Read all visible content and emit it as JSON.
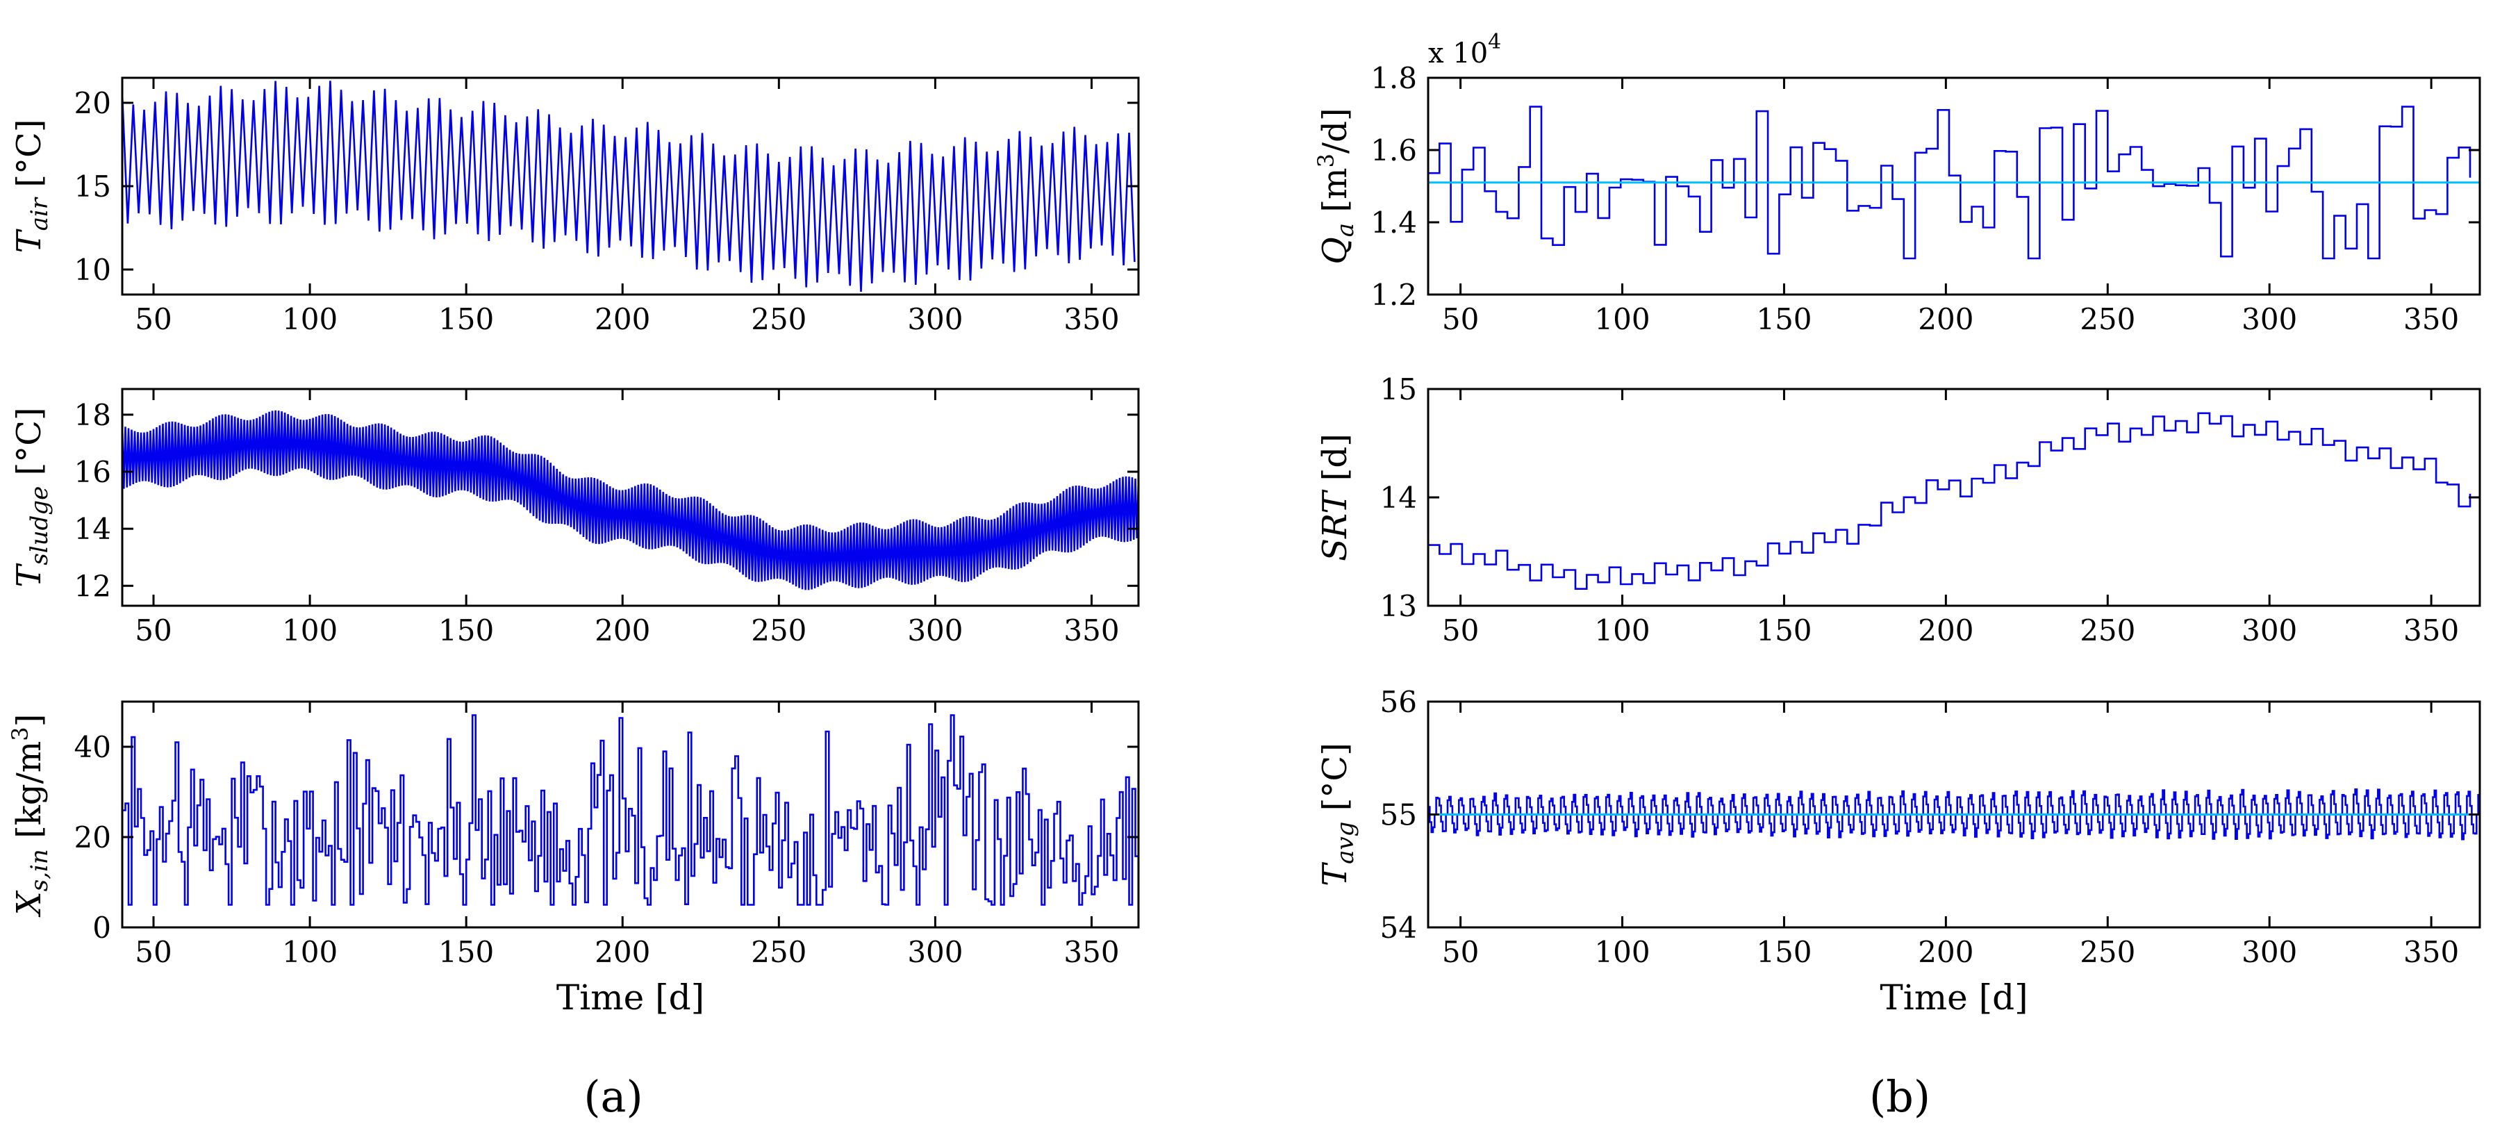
{
  "panels": [
    {
      "caption": "(a)"
    },
    {
      "caption": "(b)"
    }
  ],
  "chart_data": [
    {
      "id": "t_air",
      "panel": "a",
      "type": "line",
      "ylabel": "T_air [°C]",
      "ylabel_main": "T",
      "ylabel_sub": "air",
      "ylabel_unit": " [°C]",
      "xlabel": "",
      "xlim": [
        40,
        365
      ],
      "ylim": [
        8.5,
        21.5
      ],
      "xticks": [
        50,
        100,
        150,
        200,
        250,
        300,
        350
      ],
      "yticks": [
        10,
        15,
        20
      ],
      "series": [
        {
          "name": "T_air",
          "color": "#0000ee",
          "model": "oscillating",
          "period_days": 3.5,
          "mean_x": [
            40,
            100,
            150,
            200,
            250,
            275,
            300,
            350,
            365
          ],
          "mean_y": [
            16.5,
            17.0,
            16.0,
            14.8,
            13.3,
            13.0,
            13.5,
            14.5,
            14.2
          ],
          "amp_x": [
            40,
            100,
            200,
            300,
            365
          ],
          "amp_y": [
            3.6,
            3.8,
            3.6,
            3.8,
            3.5
          ]
        }
      ]
    },
    {
      "id": "t_sludge",
      "panel": "a",
      "type": "line",
      "ylabel": "T_sludge [°C]",
      "ylabel_main": "T",
      "ylabel_sub": "sludge",
      "ylabel_unit": " [°C]",
      "xlabel": "",
      "xlim": [
        40,
        365
      ],
      "ylim": [
        11.3,
        18.9
      ],
      "xticks": [
        50,
        100,
        150,
        200,
        250,
        300,
        350
      ],
      "yticks": [
        12,
        14,
        16,
        18
      ],
      "series": [
        {
          "name": "T_sludge",
          "color": "#0000ee",
          "model": "oscillating",
          "period_days": 1.0,
          "mean_x": [
            40,
            90,
            150,
            200,
            260,
            300,
            365
          ],
          "mean_y": [
            16.5,
            17.0,
            16.2,
            14.5,
            13.0,
            13.2,
            14.7
          ],
          "amp_x": [
            40,
            365
          ],
          "amp_y": [
            1.0,
            1.0
          ]
        }
      ]
    },
    {
      "id": "x_s_in",
      "panel": "a",
      "type": "line",
      "ylabel": "X_s,in [kg/m3]",
      "ylabel_main": "X",
      "ylabel_sub": "s,in",
      "ylabel_unit": " [kg/m",
      "ylabel_sup": "3",
      "ylabel_unit2": "]",
      "xlabel": "Time [d]",
      "xlim": [
        40,
        365
      ],
      "ylim": [
        0,
        50
      ],
      "xticks": [
        50,
        100,
        150,
        200,
        250,
        300,
        350
      ],
      "yticks": [
        0,
        20,
        40
      ],
      "series": [
        {
          "name": "X_s,in",
          "color": "#0000ee",
          "model": "random_steps",
          "step_days": 1.0,
          "seed": 7,
          "mean": 20,
          "min": 5,
          "max": 47,
          "peaks": [
            [
              57,
              41
            ],
            [
              152,
              47
            ],
            [
              298,
              45
            ]
          ]
        }
      ]
    },
    {
      "id": "q_a",
      "panel": "b",
      "type": "line",
      "ylabel": "Q_a [m3/d]",
      "ylabel_main": "Q",
      "ylabel_sub": "a",
      "ylabel_unit": " [m",
      "ylabel_sup": "3",
      "ylabel_unit2": "/d]",
      "xlabel": "",
      "scale_note": "x 10",
      "scale_exp": "4",
      "xlim": [
        40,
        365
      ],
      "ylim": [
        1.2,
        1.8
      ],
      "xticks": [
        50,
        100,
        150,
        200,
        250,
        300,
        350
      ],
      "yticks": [
        1.2,
        1.4,
        1.6,
        1.8
      ],
      "series": [
        {
          "name": "Q_a",
          "color": "#0000ee",
          "model": "random_steps",
          "step_days": 3.5,
          "seed": 3,
          "mean": 1.5,
          "min": 1.3,
          "max": 1.72
        },
        {
          "name": "Q_a reference",
          "color": "#00bfff",
          "model": "constant",
          "value": 1.51
        }
      ]
    },
    {
      "id": "srt",
      "panel": "b",
      "type": "line",
      "ylabel": "SRT [d]",
      "ylabel_main": "SRT",
      "ylabel_unit": " [d]",
      "xlabel": "",
      "xlim": [
        40,
        365
      ],
      "ylim": [
        13,
        15
      ],
      "xticks": [
        50,
        100,
        150,
        200,
        250,
        300,
        350
      ],
      "yticks": [
        13,
        14,
        15
      ],
      "series": [
        {
          "name": "SRT",
          "color": "#0000ee",
          "model": "stairs",
          "step_days": 3.5,
          "ripple": 0.12,
          "mean_x": [
            40,
            90,
            130,
            160,
            200,
            250,
            280,
            300,
            340,
            365
          ],
          "mean_y": [
            13.5,
            13.25,
            13.35,
            13.6,
            14.1,
            14.6,
            14.7,
            14.6,
            14.35,
            13.95
          ]
        }
      ]
    },
    {
      "id": "t_avg",
      "panel": "b",
      "type": "line",
      "ylabel": "T_avg [°C]",
      "ylabel_main": "T",
      "ylabel_sub": "avg",
      "ylabel_unit": " [°C]",
      "xlabel": "Time [d]",
      "xlim": [
        40,
        365
      ],
      "ylim": [
        54,
        56
      ],
      "xticks": [
        50,
        100,
        150,
        200,
        250,
        300,
        350
      ],
      "yticks": [
        54,
        55,
        56
      ],
      "series": [
        {
          "name": "T_avg",
          "color": "#0000ee",
          "model": "oscillating_steps",
          "period_days": 3.5,
          "step_days": 0.5,
          "mean_x": [
            40,
            365
          ],
          "mean_y": [
            55.0,
            55.0
          ],
          "amp_x": [
            40,
            365
          ],
          "amp_y": [
            0.2,
            0.23
          ]
        },
        {
          "name": "T_avg setpoint",
          "color": "#00bfff",
          "model": "constant",
          "value": 55.0
        }
      ]
    }
  ]
}
